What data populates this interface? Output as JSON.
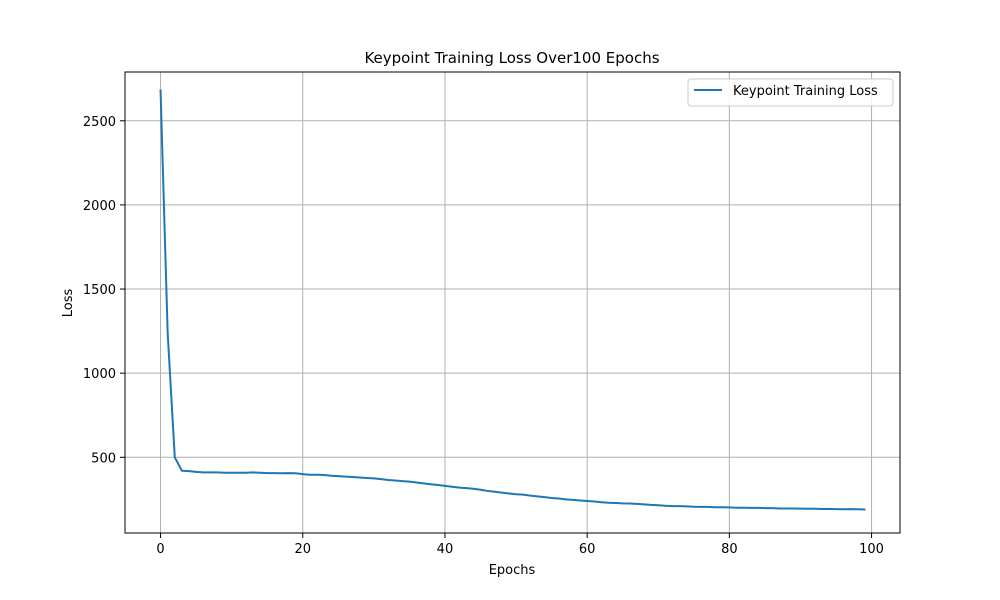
{
  "chart_data": {
    "type": "line",
    "title": "Keypoint Training Loss Over100 Epochs",
    "xlabel": "Epochs",
    "ylabel": "Loss",
    "xlim": [
      -5,
      104
    ],
    "ylim": [
      50,
      2790
    ],
    "xticks": [
      0,
      20,
      40,
      60,
      80,
      100
    ],
    "yticks": [
      500,
      1000,
      1500,
      2000,
      2500
    ],
    "grid": true,
    "legend_position": "top-right",
    "series": [
      {
        "name": "Keypoint Training Loss",
        "color": "#1f77b4",
        "x": [
          0,
          1,
          2,
          3,
          4,
          5,
          6,
          7,
          8,
          9,
          10,
          11,
          12,
          13,
          14,
          15,
          16,
          17,
          18,
          19,
          20,
          21,
          22,
          23,
          24,
          25,
          26,
          27,
          28,
          29,
          30,
          31,
          32,
          33,
          34,
          35,
          36,
          37,
          38,
          39,
          40,
          41,
          42,
          43,
          44,
          45,
          46,
          47,
          48,
          49,
          50,
          51,
          52,
          53,
          54,
          55,
          56,
          57,
          58,
          59,
          60,
          61,
          62,
          63,
          64,
          65,
          66,
          67,
          68,
          69,
          70,
          71,
          72,
          73,
          74,
          75,
          76,
          77,
          78,
          79,
          80,
          81,
          82,
          83,
          84,
          85,
          86,
          87,
          88,
          89,
          90,
          91,
          92,
          93,
          94,
          95,
          96,
          97,
          98,
          99
        ],
        "values": [
          2680,
          1240,
          500,
          420,
          418,
          413,
          410,
          410,
          410,
          408,
          408,
          408,
          408,
          410,
          408,
          406,
          406,
          405,
          406,
          405,
          400,
          396,
          396,
          395,
          390,
          388,
          385,
          383,
          380,
          377,
          375,
          370,
          365,
          362,
          358,
          355,
          350,
          345,
          340,
          335,
          330,
          325,
          320,
          317,
          313,
          307,
          300,
          295,
          290,
          285,
          280,
          278,
          272,
          268,
          263,
          258,
          255,
          250,
          247,
          243,
          240,
          237,
          233,
          230,
          228,
          226,
          225,
          223,
          220,
          217,
          215,
          212,
          210,
          210,
          208,
          206,
          205,
          205,
          203,
          203,
          202,
          200,
          200,
          199,
          199,
          198,
          198,
          196,
          196,
          196,
          195,
          194,
          194,
          193,
          193,
          192,
          191,
          192,
          191,
          190
        ]
      }
    ]
  }
}
